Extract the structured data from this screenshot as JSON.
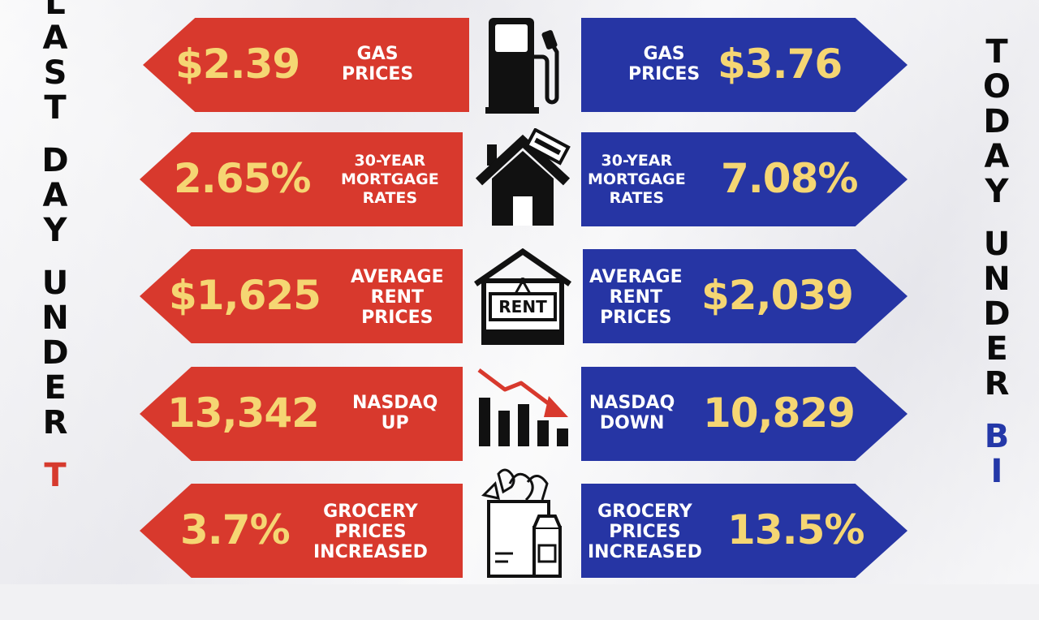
{
  "left_column": {
    "words": [
      [
        "L",
        "A",
        "S",
        "T"
      ],
      [
        "D",
        "A",
        "Y"
      ],
      [
        "U",
        "N",
        "D",
        "E",
        "R"
      ],
      [
        "T"
      ]
    ]
  },
  "right_column": {
    "words": [
      [
        "T",
        "O",
        "D",
        "A",
        "Y"
      ],
      [
        "U",
        "N",
        "D",
        "E",
        "R"
      ],
      [
        "B",
        "I"
      ]
    ]
  },
  "rows": [
    {
      "left": {
        "value": "$2.39",
        "label": [
          "GAS",
          "PRICES"
        ]
      },
      "right": {
        "value": "$3.76",
        "label": [
          "GAS",
          "PRICES"
        ]
      },
      "icon": "gas-pump-icon"
    },
    {
      "left": {
        "value": "2.65%",
        "label": [
          "30-YEAR",
          "MORTGAGE",
          "RATES"
        ]
      },
      "right": {
        "value": "7.08%",
        "label": [
          "30-YEAR",
          "MORTGAGE",
          "RATES"
        ]
      },
      "icon": "house-mortgage-icon"
    },
    {
      "left": {
        "value": "$1,625",
        "label": [
          "AVERAGE",
          "RENT",
          "PRICES"
        ]
      },
      "right": {
        "value": "$2,039",
        "label": [
          "AVERAGE",
          "RENT",
          "PRICES"
        ]
      },
      "icon": "rent-sign-icon",
      "icon_text": "RENT"
    },
    {
      "left": {
        "value": "13,342",
        "label": [
          "NASDAQ",
          "UP"
        ]
      },
      "right": {
        "value": "10,829",
        "label": [
          "NASDAQ",
          "DOWN"
        ]
      },
      "icon": "declining-chart-icon"
    },
    {
      "left": {
        "value": "3.7%",
        "label": [
          "GROCERY",
          "PRICES",
          "INCREASED"
        ]
      },
      "right": {
        "value": "13.5%",
        "label": [
          "GROCERY",
          "PRICES",
          "INCREASED"
        ]
      },
      "icon": "grocery-bag-icon"
    }
  ],
  "colors": {
    "red": "#d8392d",
    "blue": "#2635a4",
    "value": "#f5d673",
    "label": "#ffffff"
  }
}
